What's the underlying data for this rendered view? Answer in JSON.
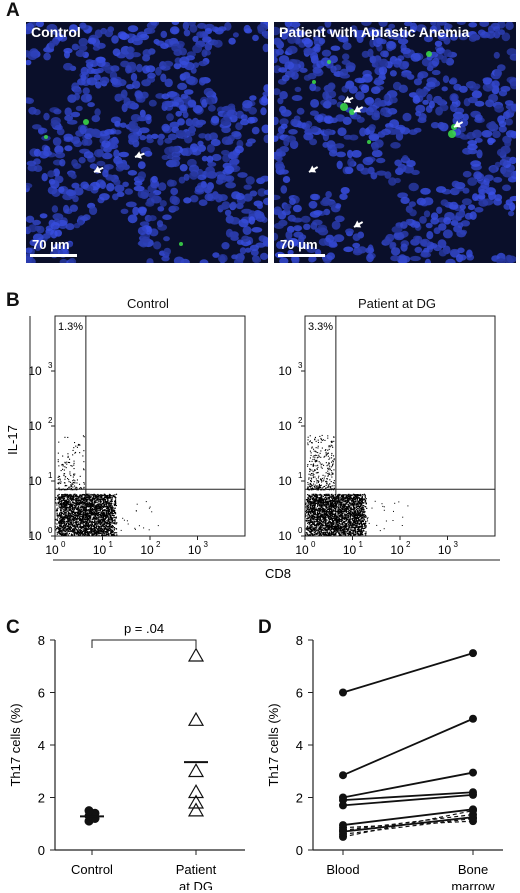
{
  "panel_a": {
    "letter": "A",
    "left_label": "Control",
    "right_label": "Patient with Aplastic Anemia",
    "scale_left": "70 μm",
    "scale_right": "70 μm"
  },
  "panel_b": {
    "letter": "B",
    "left_title": "Control",
    "right_title": "Patient at DG",
    "ylabel": "IL-17",
    "xlabel": "CD8",
    "left_pct": "1.3%",
    "right_pct": "3.3%",
    "tick_base": "10",
    "tick_exps": [
      "0",
      "1",
      "2",
      "3"
    ]
  },
  "panel_c": {
    "letter": "C",
    "pvalue": "p = .04"
  },
  "panel_d": {
    "letter": "D"
  },
  "chart_data": [
    {
      "type": "scatter",
      "ylabel": "Th17 cells (%)",
      "categories": [
        "Control",
        "Patient at DG"
      ],
      "ylim": [
        0,
        8
      ],
      "yticks": [
        0,
        2,
        4,
        6,
        8
      ],
      "series": [
        {
          "name": "Control",
          "values": [
            1.1,
            1.2,
            1.3,
            1.4,
            1.5
          ]
        },
        {
          "name": "Patient at DG",
          "values": [
            1.5,
            1.8,
            2.2,
            3.0,
            4.95,
            7.4
          ]
        }
      ],
      "means": [
        1.28,
        3.35
      ],
      "annotation": "p = .04"
    },
    {
      "type": "line",
      "ylabel": "Th17 cells (%)",
      "categories": [
        "Blood",
        "Bone marrow"
      ],
      "ylim": [
        0,
        8
      ],
      "yticks": [
        0,
        2,
        4,
        6,
        8
      ],
      "solid_pairs": [
        [
          6.0,
          7.5
        ],
        [
          2.85,
          5.0
        ],
        [
          2.0,
          2.95
        ],
        [
          1.9,
          2.2
        ],
        [
          1.7,
          2.1
        ],
        [
          0.95,
          1.55
        ],
        [
          0.7,
          1.25
        ]
      ],
      "dashed_pairs": [
        [
          0.85,
          1.1
        ],
        [
          0.75,
          1.35
        ],
        [
          0.6,
          1.2
        ],
        [
          0.5,
          1.5
        ]
      ]
    }
  ],
  "colors": {
    "nuclei": "#3d59d6",
    "green": "#3ddf4a",
    "background": "#0a0f2a"
  }
}
